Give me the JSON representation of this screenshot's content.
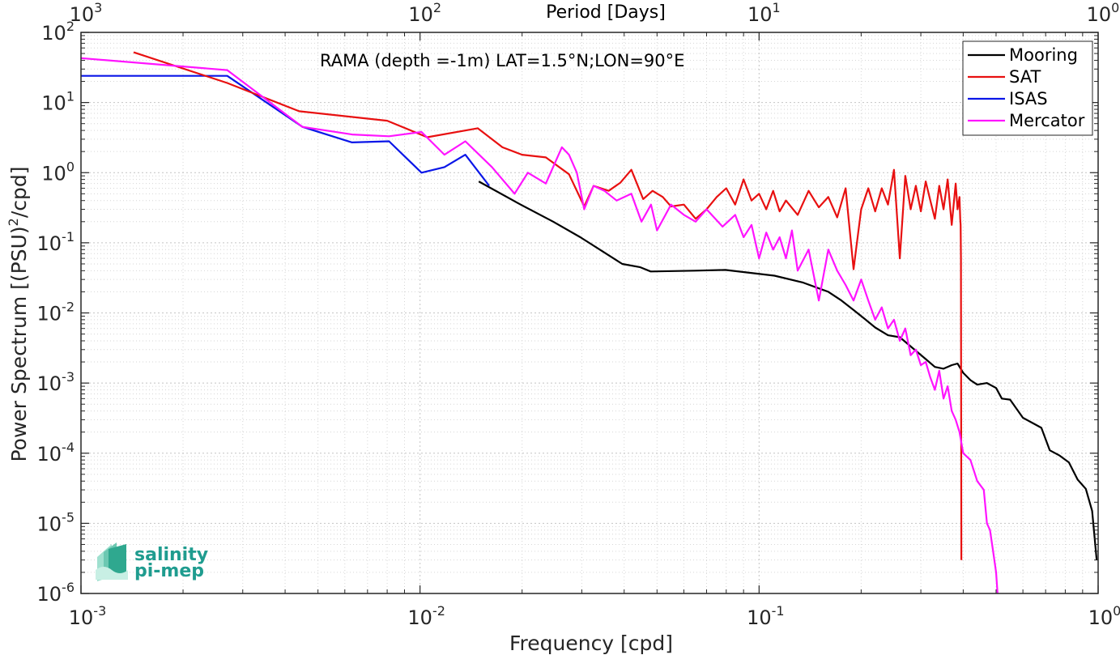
{
  "chart_data": {
    "type": "line",
    "title": "RAMA (depth =-1m) LAT=1.5°N;LON=90°E",
    "xlabel": "Frequency [cpd]",
    "ylabel": "Power Spectrum [(PSU)",
    "ylabel_sup": "2",
    "ylabel_tail": "/cpd]",
    "top_xlabel": "Period [Days]",
    "xscale": "log",
    "yscale": "log",
    "xlim": [
      0.001,
      1
    ],
    "ylim": [
      1e-06,
      100
    ],
    "grid": true,
    "legend_position": "top-right",
    "x_ticks": [
      {
        "v": 0.001,
        "base": "10",
        "exp": "-3"
      },
      {
        "v": 0.01,
        "base": "10",
        "exp": "-2"
      },
      {
        "v": 0.1,
        "base": "10",
        "exp": "-1"
      },
      {
        "v": 1,
        "base": "10",
        "exp": "0"
      }
    ],
    "top_ticks": [
      {
        "v": 0.001,
        "base": "10",
        "exp": "3"
      },
      {
        "v": 0.01,
        "base": "10",
        "exp": "2"
      },
      {
        "v": 0.1,
        "base": "10",
        "exp": "1"
      },
      {
        "v": 1,
        "base": "10",
        "exp": "0"
      }
    ],
    "y_ticks": [
      {
        "v": 100,
        "base": "10",
        "exp": "2"
      },
      {
        "v": 10,
        "base": "10",
        "exp": "1"
      },
      {
        "v": 1,
        "base": "10",
        "exp": "0"
      },
      {
        "v": 0.1,
        "base": "10",
        "exp": "-1"
      },
      {
        "v": 0.01,
        "base": "10",
        "exp": "-2"
      },
      {
        "v": 0.001,
        "base": "10",
        "exp": "-3"
      },
      {
        "v": 0.0001,
        "base": "10",
        "exp": "-4"
      },
      {
        "v": 1e-05,
        "base": "10",
        "exp": "-5"
      },
      {
        "v": 1e-06,
        "base": "10",
        "exp": "-6"
      }
    ],
    "series": [
      {
        "name": "Mooring",
        "color": "#000000",
        "x": [
          0.0149,
          0.0198,
          0.0247,
          0.0297,
          0.0346,
          0.0395,
          0.0445,
          0.0479,
          0.0646,
          0.0795,
          0.111,
          0.135,
          0.16,
          0.175,
          0.19,
          0.205,
          0.22,
          0.24,
          0.26,
          0.285,
          0.31,
          0.33,
          0.35,
          0.37,
          0.385,
          0.4,
          0.42,
          0.44,
          0.47,
          0.5,
          0.52,
          0.55,
          0.6,
          0.64,
          0.68,
          0.72,
          0.77,
          0.82,
          0.87,
          0.92,
          0.96,
          0.99
        ],
        "y": [
          0.75,
          0.35,
          0.2,
          0.12,
          0.075,
          0.05,
          0.045,
          0.039,
          0.04,
          0.041,
          0.034,
          0.027,
          0.02,
          0.015,
          0.011,
          0.0082,
          0.0062,
          0.0048,
          0.0045,
          0.0031,
          0.0022,
          0.0017,
          0.0016,
          0.0018,
          0.0019,
          0.0014,
          0.0011,
          0.00095,
          0.001,
          0.00085,
          0.0006,
          0.00058,
          0.00032,
          0.00027,
          0.00023,
          0.00011,
          9.25e-05,
          7.4e-05,
          4.2e-05,
          3.1e-05,
          1.5e-05,
          3e-06
        ]
      },
      {
        "name": "SAT",
        "color": "#e81010",
        "x": [
          0.00143,
          0.0027,
          0.0044,
          0.008,
          0.0105,
          0.0148,
          0.0175,
          0.02,
          0.0235,
          0.0275,
          0.0305,
          0.0325,
          0.036,
          0.039,
          0.042,
          0.0455,
          0.0485,
          0.052,
          0.055,
          0.06,
          0.065,
          0.07,
          0.075,
          0.08,
          0.085,
          0.09,
          0.095,
          0.1,
          0.105,
          0.11,
          0.115,
          0.12,
          0.13,
          0.14,
          0.15,
          0.16,
          0.17,
          0.18,
          0.19,
          0.2,
          0.21,
          0.22,
          0.23,
          0.24,
          0.25,
          0.26,
          0.27,
          0.28,
          0.29,
          0.3,
          0.31,
          0.32,
          0.33,
          0.34,
          0.35,
          0.36,
          0.37,
          0.38,
          0.385,
          0.39,
          0.392,
          0.393,
          0.394,
          0.395
        ],
        "y": [
          52,
          19,
          7.5,
          5.5,
          3.2,
          4.3,
          2.3,
          1.8,
          1.65,
          0.95,
          0.33,
          0.65,
          0.55,
          0.72,
          1.1,
          0.42,
          0.55,
          0.45,
          0.33,
          0.35,
          0.22,
          0.3,
          0.45,
          0.6,
          0.35,
          0.8,
          0.4,
          0.5,
          0.3,
          0.55,
          0.28,
          0.4,
          0.25,
          0.55,
          0.32,
          0.45,
          0.23,
          0.6,
          0.042,
          0.3,
          0.6,
          0.28,
          0.6,
          0.35,
          1.1,
          0.06,
          0.9,
          0.3,
          0.65,
          0.28,
          0.75,
          0.4,
          0.22,
          0.65,
          0.3,
          0.8,
          0.18,
          0.7,
          0.3,
          0.45,
          0.22,
          0.18,
          0.06,
          3e-06
        ]
      },
      {
        "name": "ISAS",
        "color": "#0a16e8",
        "x": [
          0.001,
          0.0027,
          0.0045,
          0.0063,
          0.0081,
          0.0101,
          0.0118,
          0.0136,
          0.016
        ],
        "y": [
          24,
          24,
          4.5,
          2.7,
          2.8,
          1.0,
          1.2,
          1.8,
          0.65
        ]
      },
      {
        "name": "Mercator",
        "color": "#ff14ff",
        "x": [
          0.001,
          0.0027,
          0.0045,
          0.0063,
          0.0081,
          0.0101,
          0.0118,
          0.0136,
          0.0163,
          0.019,
          0.0208,
          0.0235,
          0.0262,
          0.0275,
          0.029,
          0.0305,
          0.0325,
          0.035,
          0.038,
          0.042,
          0.045,
          0.048,
          0.05,
          0.055,
          0.06,
          0.065,
          0.07,
          0.078,
          0.085,
          0.09,
          0.095,
          0.1,
          0.105,
          0.11,
          0.115,
          0.12,
          0.125,
          0.13,
          0.14,
          0.15,
          0.16,
          0.17,
          0.18,
          0.19,
          0.2,
          0.21,
          0.22,
          0.23,
          0.24,
          0.25,
          0.26,
          0.27,
          0.28,
          0.29,
          0.3,
          0.31,
          0.32,
          0.33,
          0.34,
          0.35,
          0.36,
          0.37,
          0.38,
          0.39,
          0.4,
          0.42,
          0.44,
          0.46,
          0.47,
          0.48,
          0.49,
          0.5,
          0.505
        ],
        "y": [
          43,
          29,
          4.5,
          3.5,
          3.3,
          3.8,
          1.8,
          2.8,
          1.2,
          0.5,
          1.0,
          0.7,
          2.3,
          1.8,
          1.0,
          0.3,
          0.65,
          0.55,
          0.4,
          0.5,
          0.2,
          0.35,
          0.15,
          0.35,
          0.25,
          0.2,
          0.3,
          0.17,
          0.25,
          0.12,
          0.18,
          0.06,
          0.14,
          0.08,
          0.12,
          0.06,
          0.15,
          0.04,
          0.08,
          0.015,
          0.08,
          0.04,
          0.025,
          0.015,
          0.03,
          0.015,
          0.008,
          0.012,
          0.006,
          0.008,
          0.004,
          0.006,
          0.0025,
          0.003,
          0.0018,
          0.002,
          0.0012,
          0.0008,
          0.0015,
          0.0006,
          0.0009,
          0.0004,
          0.0003,
          0.0002,
          0.0001,
          8e-05,
          4e-05,
          3e-05,
          1e-05,
          8e-06,
          4e-06,
          2e-06,
          1e-06
        ]
      }
    ]
  },
  "logo": {
    "line1": "salinity",
    "line2": "pi-mep"
  }
}
